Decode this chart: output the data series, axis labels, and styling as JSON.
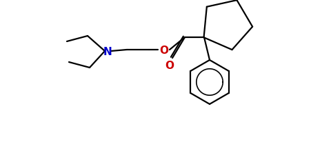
{
  "bg_color": "#ffffff",
  "N_color": "#0000cc",
  "O_color": "#cc0000",
  "line_color": "#000000",
  "line_width": 1.6,
  "figsize": [
    4.51,
    2.07
  ],
  "dpi": 100,
  "xlim": [
    0,
    451
  ],
  "ylim": [
    0,
    207
  ]
}
